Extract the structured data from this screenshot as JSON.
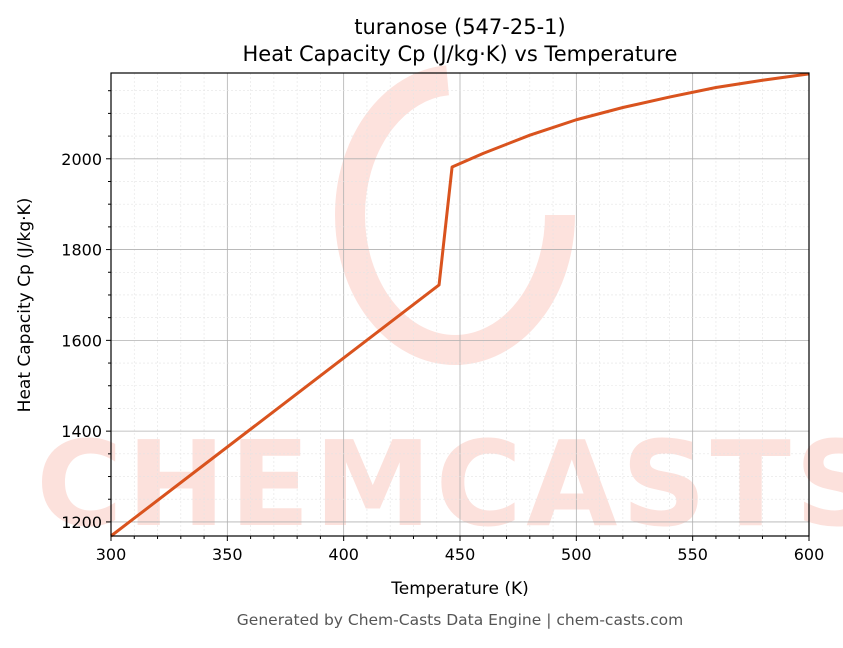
{
  "chart_data": {
    "type": "line",
    "title": "turanose (547-25-1)",
    "subtitle": "Heat Capacity Cp (J/kg·K) vs Temperature",
    "xlabel": "Temperature (K)",
    "ylabel": "Heat Capacity Cp (J/kg·K)",
    "xlim": [
      300,
      600
    ],
    "ylim": [
      1169,
      2189
    ],
    "xticks": [
      300,
      350,
      400,
      450,
      500,
      550,
      600
    ],
    "yticks": [
      1200,
      1400,
      1600,
      1800,
      2000
    ],
    "grid": true,
    "line_color": "#d9531e",
    "series": [
      {
        "x": [
          300,
          441,
          446.6,
          460,
          480,
          500,
          520,
          540,
          560,
          580,
          600
        ],
        "y": [
          1169,
          1722,
          1982,
          2012,
          2052,
          2086,
          2113,
          2136,
          2157,
          2173,
          2187
        ]
      }
    ]
  },
  "watermark": "CHEMCASTS",
  "footer": "Generated by Chem-Casts Data Engine | chem-casts.com"
}
